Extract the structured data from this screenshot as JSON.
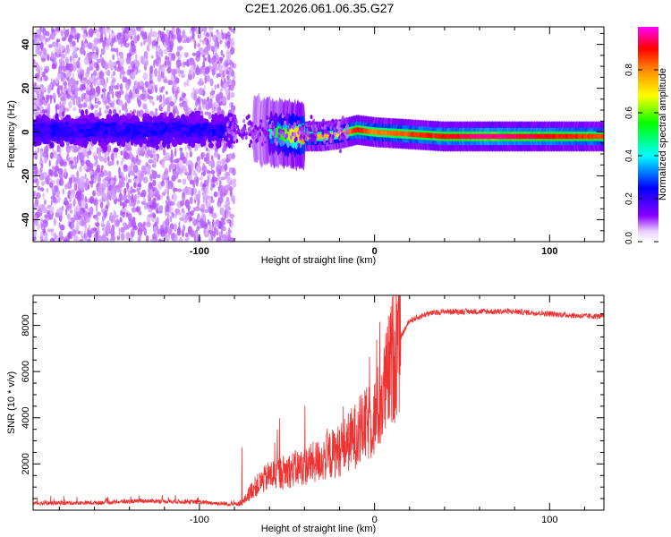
{
  "figure_title": "C2E1.2026.061.06.35.G27",
  "chart_data": [
    {
      "type": "heatmap",
      "xlabel": "Height of straight line (km)",
      "ylabel": "Frequency (Hz)",
      "xlim": [
        -195,
        131
      ],
      "ylim": [
        -50,
        48
      ],
      "xticks": [
        -100,
        0,
        100
      ],
      "yticks": [
        -40,
        -20,
        0,
        20,
        40
      ],
      "colorbar": {
        "label": "Normalized spectral amplitude",
        "range": [
          0,
          1
        ],
        "ticks": [
          "0.0",
          "0.2",
          "0.4",
          "0.6",
          "0.8"
        ],
        "colors": [
          "#ffffff",
          "#8800ff",
          "#0000ff",
          "#00ffff",
          "#00ff00",
          "#ffff00",
          "#ff8800",
          "#ff0000",
          "#ff00ff"
        ]
      },
      "signal_track": {
        "x": [
          -75,
          -60,
          -50,
          -40,
          -30,
          -20,
          -10,
          0,
          20,
          40,
          60,
          80,
          100,
          131
        ],
        "freq": [
          2,
          0,
          -1,
          -2,
          -2,
          -1,
          1,
          0,
          -1,
          -2,
          -2,
          -2,
          -2,
          -2
        ],
        "amplitude": [
          0.3,
          0.45,
          0.6,
          0.8,
          0.75,
          0.7,
          0.9,
          0.8,
          0.85,
          0.9,
          0.95,
          0.95,
          0.9,
          0.85
        ]
      },
      "noise_region_x": [
        -195,
        -80
      ]
    },
    {
      "type": "line",
      "xlabel": "Height of straight line (km)",
      "ylabel": "SNR (10 * v/v)",
      "xlim": [
        -195,
        131
      ],
      "ylim": [
        0,
        9300
      ],
      "xticks": [
        -100,
        0,
        100
      ],
      "yticks": [
        2000,
        4000,
        6000,
        8000
      ],
      "color": "#ee3333",
      "trend": {
        "x": [
          -195,
          -160,
          -130,
          -100,
          -80,
          -75,
          -70,
          -60,
          -50,
          -40,
          -30,
          -20,
          -10,
          0,
          5,
          10,
          15,
          20,
          30,
          40,
          60,
          80,
          100,
          120,
          131
        ],
        "y": [
          300,
          320,
          400,
          350,
          250,
          350,
          900,
          1500,
          1700,
          1900,
          2200,
          2600,
          3300,
          4000,
          5000,
          6500,
          7500,
          8200,
          8500,
          8600,
          8600,
          8600,
          8500,
          8400,
          8400
        ]
      }
    }
  ]
}
